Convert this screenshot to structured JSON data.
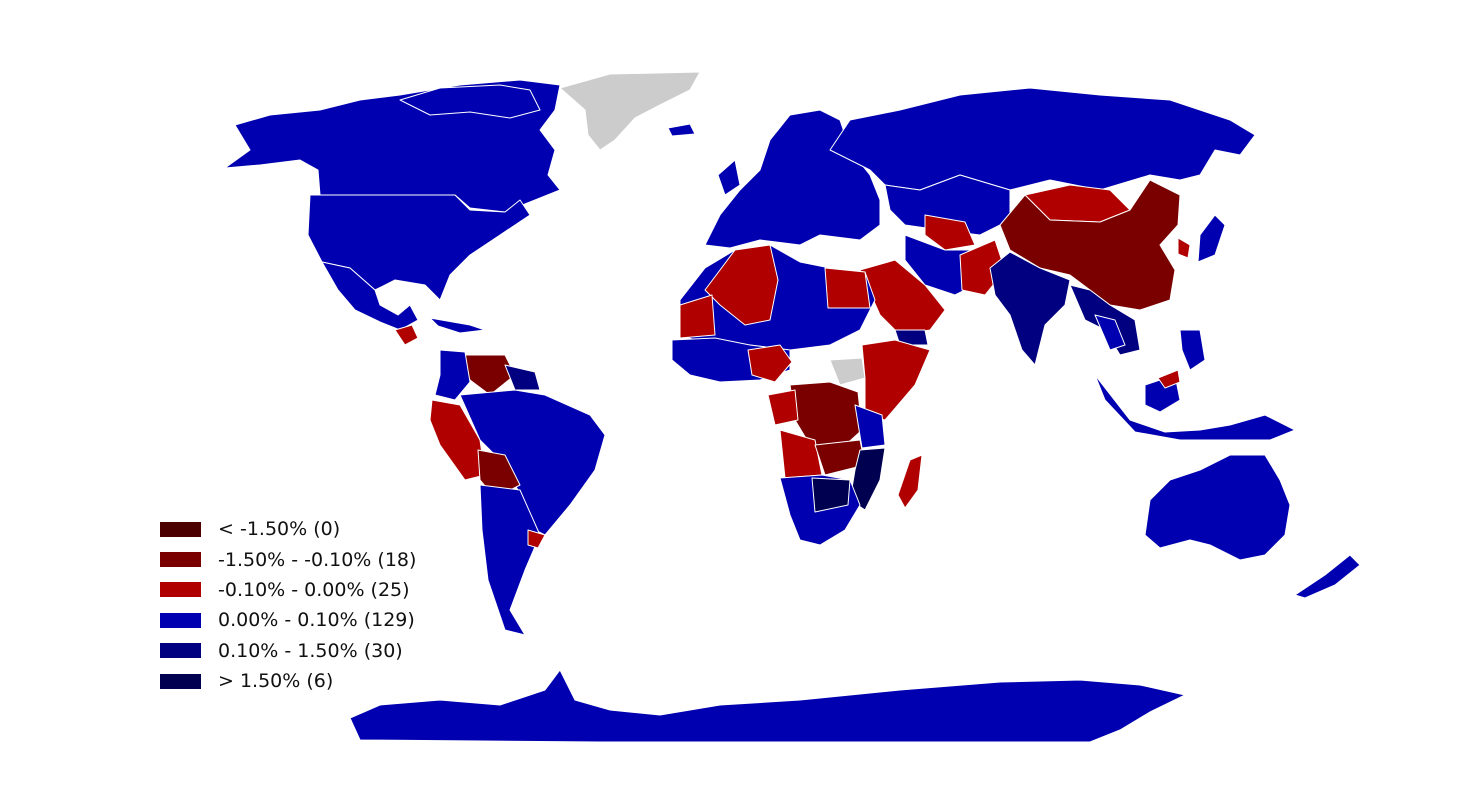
{
  "colors": {
    "lt_neg_1_5": "#4d0000",
    "neg_1_5_to_neg_0_1": "#7a0000",
    "neg_0_1_to_0": "#b00000",
    "zero_to_0_1": "#0000b0",
    "0_1_to_1_5": "#000080",
    "gt_1_5": "#000050",
    "no_data": "#cccccc"
  },
  "legend": {
    "items": [
      {
        "label": "< -1.50% (0)",
        "color": "#4d0000"
      },
      {
        "label": "-1.50% - -0.10% (18)",
        "color": "#7a0000"
      },
      {
        "label": "-0.10% - 0.00% (25)",
        "color": "#b00000"
      },
      {
        "label": "0.00% - 0.10% (129)",
        "color": "#0000b0"
      },
      {
        "label": "0.10% - 1.50% (30)",
        "color": "#000080"
      },
      {
        "label": "> 1.50% (6)",
        "color": "#000050"
      }
    ]
  }
}
